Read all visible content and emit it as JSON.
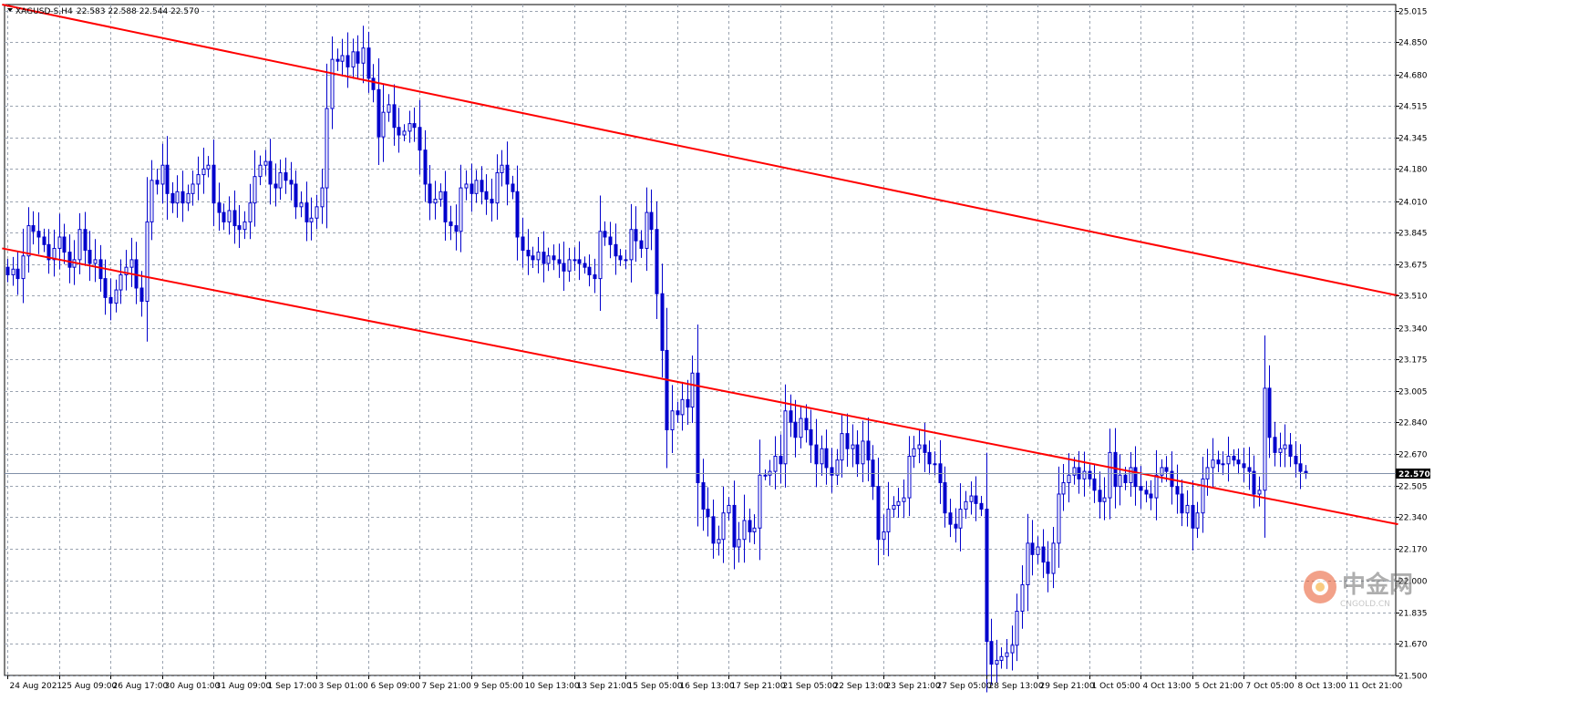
{
  "chart_data": {
    "type": "candlestick",
    "title": "XAGUSD-S,H4",
    "ohlc_header": "22.583 22.588 22.544 22.570",
    "current_price": "22.570",
    "current_price_value": 22.57,
    "ylim": [
      21.5,
      25.05
    ],
    "y_tick_labels": [
      "25.015",
      "24.850",
      "24.680",
      "24.515",
      "24.345",
      "24.180",
      "24.010",
      "23.845",
      "23.675",
      "23.510",
      "23.340",
      "23.175",
      "23.005",
      "22.840",
      "22.670",
      "22.505",
      "22.340",
      "22.170",
      "22.000",
      "21.835",
      "21.670",
      "21.500"
    ],
    "x_tick_labels": [
      "24 Aug 2021",
      "25 Aug 09:00",
      "26 Aug 17:00",
      "30 Aug 01:00",
      "31 Aug 09:00",
      "1 Sep 17:00",
      "3 Sep 01:00",
      "6 Sep 09:00",
      "7 Sep 21:00",
      "9 Sep 05:00",
      "10 Sep 13:00",
      "13 Sep 21:00",
      "15 Sep 05:00",
      "16 Sep 13:00",
      "17 Sep 21:00",
      "21 Sep 05:00",
      "22 Sep 13:00",
      "23 Sep 21:00",
      "27 Sep 05:00",
      "28 Sep 13:00",
      "29 Sep 21:00",
      "1 Oct 05:00",
      "4 Oct 13:00",
      "5 Oct 21:00",
      "7 Oct 05:00",
      "8 Oct 13:00",
      "11 Oct 21:00"
    ],
    "grid": true,
    "up_color": "#ffffff",
    "down_color": "#0000cc",
    "candle_outline": "#0000cc",
    "trendline_color": "#ff0000",
    "grid_color": "#9aa3b0",
    "price_line_color": "#8090a8",
    "trendlines": [
      {
        "from": {
          "bar": -1,
          "price": 25.05
        },
        "to": {
          "bar": 270,
          "price": 23.51
        }
      },
      {
        "from": {
          "bar": -1,
          "price": 23.76
        },
        "to": {
          "bar": 270,
          "price": 22.3
        }
      }
    ],
    "closes": [
      23.62,
      23.65,
      23.6,
      23.72,
      23.88,
      23.85,
      23.82,
      23.78,
      23.7,
      23.76,
      23.82,
      23.74,
      23.66,
      23.7,
      23.86,
      23.75,
      23.68,
      23.7,
      23.6,
      23.5,
      23.47,
      23.54,
      23.62,
      23.66,
      23.7,
      23.55,
      23.48,
      23.9,
      24.12,
      24.1,
      24.2,
      24.05,
      24.0,
      24.06,
      24.0,
      24.05,
      24.1,
      24.15,
      24.18,
      24.2,
      24.0,
      23.95,
      23.9,
      23.96,
      23.88,
      23.86,
      23.9,
      24.0,
      24.14,
      24.2,
      24.22,
      24.1,
      24.08,
      24.16,
      24.12,
      24.1,
      23.98,
      24.0,
      23.9,
      23.92,
      23.98,
      24.08,
      24.5,
      24.76,
      24.75,
      24.78,
      24.72,
      24.8,
      24.74,
      24.82,
      24.66,
      24.6,
      24.35,
      24.48,
      24.52,
      24.4,
      24.36,
      24.38,
      24.42,
      24.4,
      24.28,
      24.1,
      24.0,
      24.02,
      24.06,
      23.9,
      23.88,
      23.85,
      24.08,
      24.1,
      24.05,
      24.12,
      24.06,
      24.02,
      24.0,
      24.16,
      24.2,
      24.1,
      24.06,
      23.82,
      23.75,
      23.72,
      23.7,
      23.74,
      23.68,
      23.72,
      23.7,
      23.68,
      23.64,
      23.7,
      23.7,
      23.68,
      23.66,
      23.62,
      23.6,
      23.85,
      23.82,
      23.78,
      23.72,
      23.7,
      23.7,
      23.86,
      23.8,
      23.76,
      23.95,
      23.86,
      23.52,
      23.22,
      22.8,
      22.9,
      22.88,
      22.96,
      22.92,
      23.1,
      22.52,
      22.38,
      22.34,
      22.2,
      22.22,
      22.36,
      22.4,
      22.18,
      22.22,
      22.32,
      22.26,
      22.28,
      22.56,
      22.56,
      22.58,
      22.66,
      22.62,
      22.9,
      22.84,
      22.76,
      22.86,
      22.8,
      22.72,
      22.62,
      22.7,
      22.6,
      22.56,
      22.64,
      22.78,
      22.7,
      22.72,
      22.62,
      22.74,
      22.64,
      22.5,
      22.22,
      22.26,
      22.38,
      22.4,
      22.42,
      22.44,
      22.66,
      22.7,
      22.72,
      22.68,
      22.62,
      22.62,
      22.52,
      22.36,
      22.3,
      22.28,
      22.38,
      22.42,
      22.45,
      22.41,
      22.38,
      21.68,
      21.56,
      21.58,
      21.6,
      21.62,
      21.66,
      21.84,
      21.98,
      22.2,
      22.14,
      22.18,
      22.1,
      22.04,
      22.2,
      22.46,
      22.52,
      22.56,
      22.6,
      22.54,
      22.58,
      22.54,
      22.48,
      22.42,
      22.44,
      22.68,
      22.5,
      22.56,
      22.52,
      22.6,
      22.5,
      22.48,
      22.46,
      22.44,
      22.56,
      22.6,
      22.58,
      22.5,
      22.46,
      22.36,
      22.4,
      22.28,
      22.36,
      22.54,
      22.6,
      22.64,
      22.62,
      22.62,
      22.66,
      22.64,
      22.62,
      22.6,
      22.58,
      22.46,
      22.48,
      23.02,
      22.76,
      22.68,
      22.7,
      22.72,
      22.66,
      22.62,
      22.58,
      22.57
    ],
    "highlighted_bar_color": "#00cc00"
  },
  "watermark": {
    "brand": "中金网",
    "site": "CNGOLD.CN"
  }
}
